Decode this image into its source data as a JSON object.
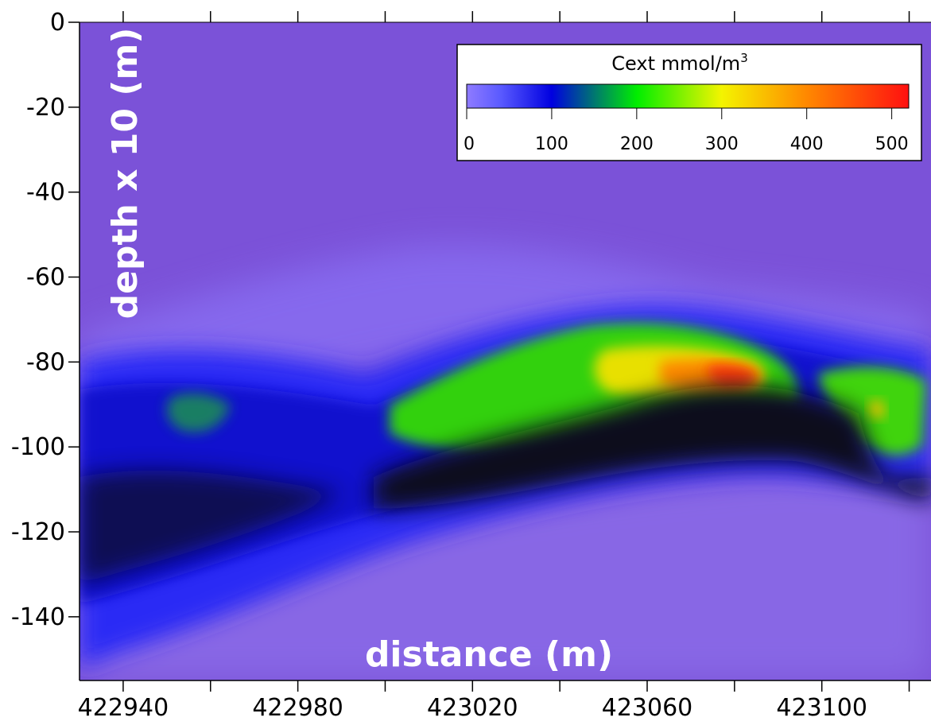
{
  "chart_data": {
    "type": "heatmap",
    "title": "",
    "xlabel": "distance (m)",
    "ylabel": "depth x 10 (m)",
    "xlim": [
      422930,
      423125
    ],
    "ylim": [
      -155,
      0
    ],
    "x_ticks": [
      422940,
      422960,
      422980,
      423000,
      423020,
      423040,
      423060,
      423080,
      423100,
      423120
    ],
    "x_tick_labels": [
      "422940",
      "422980",
      "423020",
      "423060",
      "423100"
    ],
    "y_ticks": [
      0,
      -20,
      -40,
      -60,
      -80,
      -100,
      -120,
      -140
    ],
    "y_tick_labels": [
      "0",
      "-20",
      "-40",
      "-60",
      "-80",
      "-100",
      "-120",
      "-140"
    ],
    "background_value": 0,
    "colorbar": {
      "title": "Cext mmol/m",
      "title_superscript": "3",
      "range": [
        0,
        520
      ],
      "ticks": [
        0,
        100,
        200,
        300,
        400,
        500
      ],
      "tick_labels": [
        "0",
        "100",
        "200",
        "300",
        "400",
        "500"
      ],
      "placement": "top-right",
      "stops": [
        {
          "value": 0,
          "color": "#8f7bff"
        },
        {
          "value": 40,
          "color": "#5a5aff"
        },
        {
          "value": 100,
          "color": "#0000e0"
        },
        {
          "value": 200,
          "color": "#00ee00"
        },
        {
          "value": 300,
          "color": "#f4f400"
        },
        {
          "value": 400,
          "color": "#ff8800"
        },
        {
          "value": 520,
          "color": "#ff1010"
        }
      ]
    },
    "features": [
      {
        "name": "low plume",
        "x": [
          422930,
          423010
        ],
        "y": [
          -140,
          -70
        ],
        "approx_value": 90
      },
      {
        "name": "green patches left",
        "x": [
          422940,
          422960
        ],
        "y": [
          -100,
          -85
        ],
        "approx_value": 170
      },
      {
        "name": "main hotspot",
        "x": [
          423000,
          423085
        ],
        "y": [
          -100,
          -72
        ],
        "approx_value": 220
      },
      {
        "name": "peak",
        "x": [
          423070,
          423085
        ],
        "y": [
          -88,
          -80
        ],
        "approx_value": 420
      },
      {
        "name": "right green patch",
        "x": [
          423095,
          423120
        ],
        "y": [
          -100,
          -80
        ],
        "approx_value": 200
      },
      {
        "name": "dark shadow band",
        "x": [
          423000,
          423120
        ],
        "y": [
          -115,
          -95
        ],
        "approx_value": 5
      }
    ]
  }
}
